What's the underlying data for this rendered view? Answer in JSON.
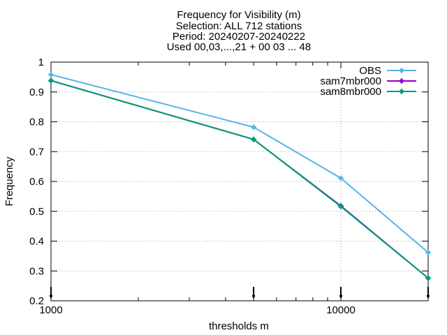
{
  "chart_data": {
    "type": "line",
    "title_lines": [
      "Frequency  for Visibility (m)",
      "Selection: ALL    712 stations",
      "Period: 20240207-20240222",
      "Used 00,03,...,21 + 00 03 ... 48"
    ],
    "xlabel": "thresholds m",
    "ylabel": "Frequency",
    "x_scale": "log",
    "xlim": [
      1000,
      20000
    ],
    "ylim": [
      0.2,
      1.0
    ],
    "x_tick_labels": [
      {
        "value": 1000,
        "label": "1000"
      },
      {
        "value": 10000,
        "label": "10000"
      }
    ],
    "y_tick_labels": [
      {
        "value": 0.2,
        "label": "0.2"
      },
      {
        "value": 0.3,
        "label": "0.3"
      },
      {
        "value": 0.4,
        "label": "0.4"
      },
      {
        "value": 0.5,
        "label": "0.5"
      },
      {
        "value": 0.6,
        "label": "0.6"
      },
      {
        "value": 0.7,
        "label": "0.7"
      },
      {
        "value": 0.8,
        "label": "0.8"
      },
      {
        "value": 0.9,
        "label": "0.9"
      },
      {
        "value": 1.0,
        "label": "1"
      }
    ],
    "grid": true,
    "legend_position": "top-right",
    "x": [
      1000,
      5000,
      10000,
      20000
    ],
    "series": [
      {
        "name": "OBS",
        "color": "#56b4e9",
        "values": [
          0.958,
          0.782,
          0.611,
          0.362
        ]
      },
      {
        "name": "sam7mbr000",
        "color": "#9400d3",
        "values": [
          0.938,
          0.741,
          0.518,
          0.276
        ]
      },
      {
        "name": "sam8mbr000",
        "color": "#009e73",
        "values": [
          0.938,
          0.741,
          0.516,
          0.276
        ]
      }
    ]
  }
}
